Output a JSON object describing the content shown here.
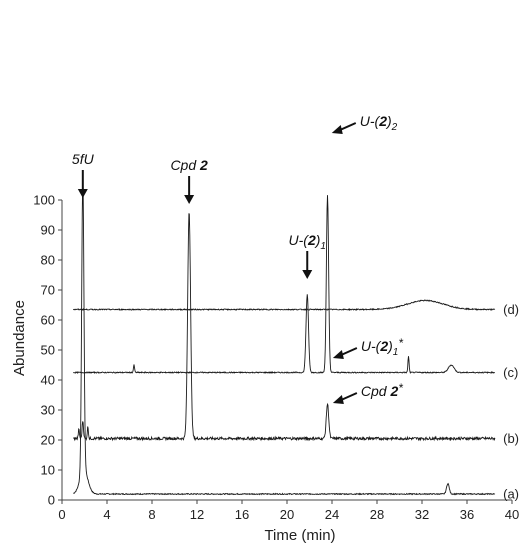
{
  "chart_data": {
    "type": "line",
    "xlabel": "Time (min)",
    "ylabel": "Abundance",
    "xlim": [
      0,
      40
    ],
    "ylim": [
      0,
      100
    ],
    "xticks": [
      0,
      4,
      8,
      12,
      16,
      20,
      24,
      28,
      32,
      36,
      40
    ],
    "yticks": [
      0,
      10,
      20,
      30,
      40,
      50,
      60,
      70,
      80,
      90,
      100
    ],
    "grid": false,
    "series": [
      {
        "name": "(a)",
        "baseline": 2,
        "x_end": 38.5,
        "peaks": [
          {
            "t": 1.85,
            "h": 98,
            "w": 0.1
          },
          {
            "t": 1.95,
            "h": 8,
            "w": 0.35
          },
          {
            "t": 34.3,
            "h": 3.5,
            "w": 0.12
          }
        ]
      },
      {
        "name": "(b)",
        "baseline": 20.5,
        "x_end": 38.5,
        "peaks": [
          {
            "t": 1.5,
            "h": 3,
            "w": 0.05
          },
          {
            "t": 1.85,
            "h": 6,
            "w": 0.06
          },
          {
            "t": 2.3,
            "h": 4,
            "w": 0.05
          },
          {
            "t": 11.3,
            "h": 76,
            "w": 0.13
          },
          {
            "t": 23.6,
            "h": 11.5,
            "w": 0.11
          }
        ]
      },
      {
        "name": "(c)",
        "baseline": 42.5,
        "x_end": 38.5,
        "peaks": [
          {
            "t": 6.4,
            "h": 2.5,
            "w": 0.05
          },
          {
            "t": 21.8,
            "h": 26,
            "w": 0.11
          },
          {
            "t": 23.6,
            "h": 59,
            "w": 0.1
          },
          {
            "t": 30.8,
            "h": 5.5,
            "w": 0.05
          },
          {
            "t": 34.6,
            "h": 2.5,
            "w": 0.25
          }
        ]
      },
      {
        "name": "(d)",
        "baseline": 63.5,
        "x_end": 38.5,
        "peaks": [
          {
            "t": 32.3,
            "h": 3,
            "w": 1.6
          }
        ]
      }
    ],
    "annotations": [
      {
        "text": "5fU",
        "bold": "",
        "sub": "",
        "x": 1.85,
        "y": 100,
        "arrow": "down"
      },
      {
        "text": "Cpd ",
        "bold": "2",
        "sub": "",
        "x": 11.3,
        "y": 98,
        "arrow": "down"
      },
      {
        "text": "U-(",
        "bold": "2",
        "sub": "1",
        "x": 21.8,
        "y": 73,
        "arrow": "down"
      },
      {
        "text": "U-(",
        "bold": "2",
        "sub": "2",
        "x": 23.8,
        "y": 123,
        "arrow": "left"
      },
      {
        "text": "U-(",
        "bold": "2",
        "sub": "1",
        "star": "*",
        "x": 23.9,
        "y": 48,
        "arrow": "left"
      },
      {
        "text": "Cpd ",
        "bold": "2",
        "sub": "",
        "star": "*",
        "x": 23.9,
        "y": 33,
        "arrow": "left"
      }
    ]
  }
}
